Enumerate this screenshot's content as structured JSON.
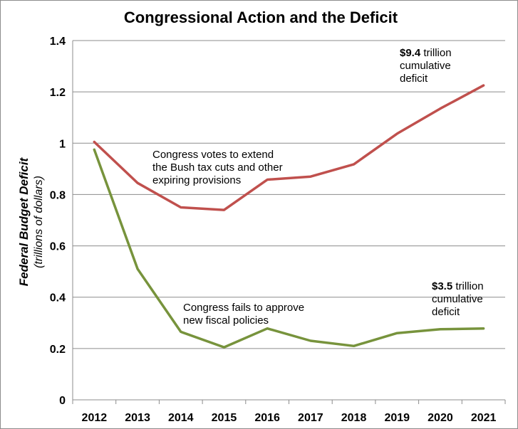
{
  "chart_data": {
    "type": "line",
    "title": "Congressional Action and the Deficit",
    "ylabel": "Federal Budget Deficit",
    "ylabel_sub": "(trillions of dollars)",
    "xlabel": "",
    "categories": [
      "2012",
      "2013",
      "2014",
      "2015",
      "2016",
      "2017",
      "2018",
      "2019",
      "2020",
      "2021"
    ],
    "ylim": [
      0,
      1.4
    ],
    "yticks": [
      {
        "value": 0,
        "label": "0"
      },
      {
        "value": 0.2,
        "label": "0.2"
      },
      {
        "value": 0.4,
        "label": "0.4"
      },
      {
        "value": 0.6,
        "label": "0.6"
      },
      {
        "value": 0.8,
        "label": "0.8"
      },
      {
        "value": 1,
        "label": "1"
      },
      {
        "value": 1.2,
        "label": "1.2"
      },
      {
        "value": 1.4,
        "label": "1.4"
      }
    ],
    "grid": true,
    "legend": "none",
    "series": [
      {
        "color": "#c0504d",
        "values": [
          1.005,
          0.845,
          0.75,
          0.74,
          0.858,
          0.87,
          0.918,
          1.037,
          1.135,
          1.225
        ]
      },
      {
        "color": "#77933c",
        "values": [
          0.975,
          0.51,
          0.265,
          0.205,
          0.278,
          0.23,
          0.21,
          0.26,
          0.275,
          0.278
        ]
      }
    ],
    "annotations": {
      "top_series_note": {
        "lines": [
          "Congress votes to extend",
          "the Bush tax cuts and other",
          "expiring  provisions"
        ]
      },
      "bottom_series_note": {
        "lines": [
          "Congress fails to approve",
          "new fiscal policies"
        ]
      },
      "top_total": {
        "amount": "$9.4",
        "rest": " trillion",
        "lines": [
          "cumulative",
          "deficit"
        ]
      },
      "bottom_total": {
        "amount": "$3.5",
        "rest": " trillion",
        "lines": [
          "cumulative",
          "deficit"
        ]
      }
    }
  }
}
